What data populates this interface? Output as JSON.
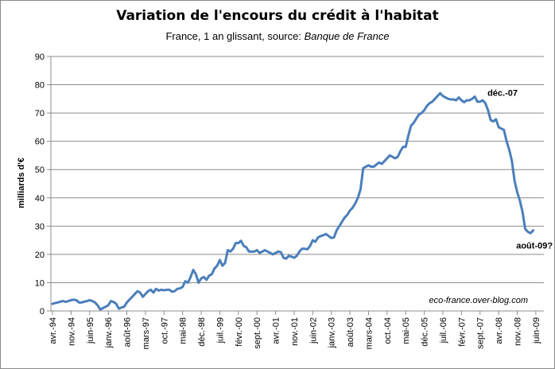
{
  "chart_data": {
    "type": "line",
    "title": "Variation de l'encours du crédit à l'habitat",
    "subtitle_prefix": "France, 1 an glissant, source: ",
    "subtitle_source": "Banque de France",
    "ylabel": "milliards d'€",
    "xlabel": "",
    "ylim": [
      0,
      90
    ],
    "y_ticks": [
      0,
      10,
      20,
      30,
      40,
      50,
      60,
      70,
      80,
      90
    ],
    "x_tick_labels": [
      "avr.-94",
      "nov.-94",
      "juin-95",
      "janv.-96",
      "août-96",
      "mars-97",
      "oct.-97",
      "mai-98",
      "déc.-98",
      "juil.-99",
      "févr.-00",
      "sept.-00",
      "avr.-01",
      "nov.-01",
      "juin-02",
      "janv.-03",
      "août-03",
      "mars-04",
      "oct.-04",
      "mai-05",
      "déc.-05",
      "juil.-06",
      "févr.-07",
      "sept.-07",
      "avr.-08",
      "nov.-08",
      "juin-09"
    ],
    "grid": "horizontal",
    "legend": "none",
    "line_color": "#4a7ebb",
    "series": [
      {
        "values": [
          2.5,
          2.8,
          3.0,
          3.3,
          3.5,
          3.2,
          3.5,
          3.8,
          4.0,
          3.8,
          3.0,
          3.0,
          3.3,
          3.5,
          3.8,
          3.5,
          3.0,
          2.0,
          0.5,
          1.0,
          1.5,
          2.0,
          3.5,
          3.2,
          2.5,
          0.8,
          1.2,
          1.5,
          3.0,
          4.0,
          5.0,
          6.0,
          7.0,
          6.5,
          5.0,
          6.0,
          7.0,
          7.5,
          6.5,
          7.8,
          7.2,
          7.5,
          7.3,
          7.5,
          7.5,
          6.8,
          7.0,
          7.8,
          8.0,
          8.5,
          10.5,
          10.0,
          12.0,
          14.5,
          13.0,
          10.0,
          11.5,
          12.0,
          11.0,
          12.5,
          13.0,
          15.0,
          16.0,
          18.0,
          16.0,
          17.0,
          21.5,
          21.0,
          22.0,
          24.0,
          24.0,
          24.8,
          23.0,
          22.5,
          21.0,
          21.0,
          21.0,
          21.5,
          20.5,
          21.0,
          21.5,
          21.0,
          20.5,
          20.0,
          20.5,
          21.0,
          20.8,
          18.8,
          18.5,
          19.5,
          19.2,
          18.8,
          19.5,
          21.0,
          22.0,
          22.0,
          21.8,
          23.0,
          25.0,
          24.5,
          26.0,
          26.5,
          26.8,
          27.2,
          26.5,
          25.8,
          26.0,
          28.5,
          30.0,
          31.5,
          33.0,
          34.0,
          35.5,
          36.5,
          38.0,
          40.0,
          43.0,
          50.5,
          51.0,
          51.5,
          51.0,
          51.0,
          51.8,
          52.5,
          52.0,
          53.0,
          54.0,
          55.0,
          54.5,
          54.0,
          54.5,
          56.5,
          58.0,
          58.0,
          62.0,
          65.5,
          66.5,
          68.0,
          69.5,
          70.0,
          71.0,
          72.5,
          73.5,
          74.0,
          75.0,
          76.0,
          77.0,
          76.0,
          75.5,
          75.0,
          74.8,
          74.8,
          74.5,
          75.5,
          74.5,
          73.8,
          74.5,
          74.5,
          75.0,
          75.8,
          74.0,
          74.0,
          74.5,
          73.5,
          71.0,
          67.5,
          67.0,
          67.8,
          65.0,
          64.5,
          64.0,
          60.0,
          57.0,
          53.0,
          46.0,
          42.0,
          39.0,
          35.0,
          29.0,
          28.0,
          27.5,
          28.5
        ]
      }
    ],
    "annotations": [
      {
        "text": "déc.-07",
        "x_index": 162,
        "y": 75.8
      },
      {
        "text": "août-09?",
        "x_index": 183,
        "y": 28.5
      }
    ],
    "watermark": "eco-france.over-blog.com"
  }
}
